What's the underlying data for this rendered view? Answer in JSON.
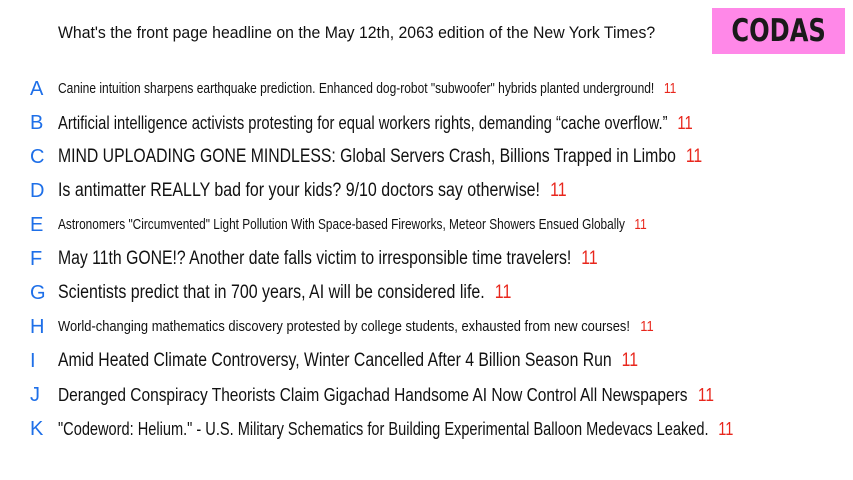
{
  "question": "What's the front page headline on the May 12th, 2063 edition of the New York Times?",
  "logo_text": "CODAS",
  "colors": {
    "letter": "#1e6fe8",
    "count": "#e8261c",
    "logo_bg": "#ff88e8"
  },
  "answers": [
    {
      "letter": "A",
      "text": "Canine intuition sharpens earthquake prediction. Enhanced dog-robot \"subwoofer\" hybrids planted underground!",
      "count": "11"
    },
    {
      "letter": "B",
      "text": "Artificial intelligence activists protesting for equal workers rights, demanding “cache overflow.”",
      "count": "11"
    },
    {
      "letter": "C",
      "text": "MIND UPLOADING GONE MINDLESS: Global Servers Crash, Billions Trapped in Limbo",
      "count": "11"
    },
    {
      "letter": "D",
      "text": "Is antimatter REALLY bad for your kids? 9/10 doctors say otherwise!",
      "count": "11"
    },
    {
      "letter": "E",
      "text": "Astronomers \"Circumvented\" Light Pollution With Space-based Fireworks, Meteor Showers Ensued Globally",
      "count": "11"
    },
    {
      "letter": "F",
      "text": "May 11th GONE!? Another date falls victim to irresponsible time travelers!",
      "count": "11"
    },
    {
      "letter": "G",
      "text": "Scientists predict that in 700 years, AI will be considered life.",
      "count": "11"
    },
    {
      "letter": "H",
      "text": "World-changing mathematics discovery protested by college students, exhausted from new courses!",
      "count": "11"
    },
    {
      "letter": "I",
      "text": "Amid Heated Climate Controversy, Winter Cancelled After 4 Billion Season Run",
      "count": "11"
    },
    {
      "letter": "J",
      "text": "Deranged Conspiracy Theorists Claim Gigachad Handsome AI Now Control All Newspapers",
      "count": "11"
    },
    {
      "letter": "K",
      "text": "\"Codeword: Helium.\" - U.S. Military Schematics for Building Experimental Balloon Medevacs Leaked.",
      "count": "11"
    }
  ]
}
